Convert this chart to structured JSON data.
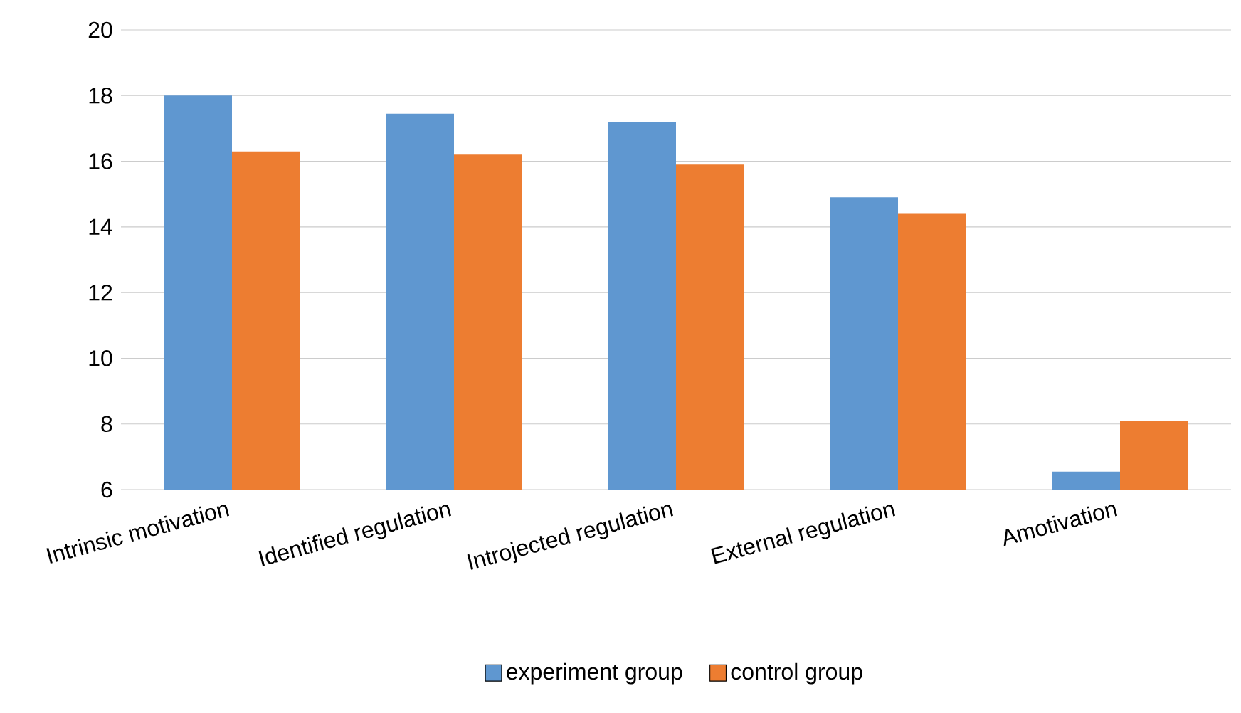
{
  "chart_data": {
    "type": "bar",
    "categories": [
      "Intrinsic motivation",
      "Identified regulation",
      "Introjected regulation",
      "External regulation",
      "Amotivation"
    ],
    "series": [
      {
        "name": "experiment group",
        "color": "#5f97d0",
        "values": [
          18.0,
          17.45,
          17.2,
          14.9,
          6.55
        ]
      },
      {
        "name": "control group",
        "color": "#ed7d31",
        "values": [
          16.3,
          16.2,
          15.9,
          14.4,
          8.1
        ]
      }
    ],
    "ylim": [
      6,
      20
    ],
    "yticks": [
      6,
      8,
      10,
      12,
      14,
      16,
      18,
      20
    ],
    "grid": "y",
    "legend": "bottom"
  }
}
